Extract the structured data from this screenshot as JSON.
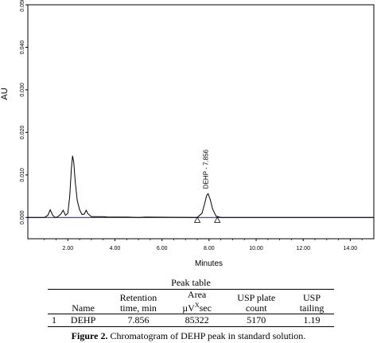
{
  "chart_data": {
    "type": "line",
    "title": "",
    "xlabel": "Minutes",
    "ylabel": "AU",
    "xlim": [
      0.3,
      15.0
    ],
    "ylim": [
      -0.005,
      0.05
    ],
    "x_ticks": [
      "2.00",
      "4.00",
      "6.00",
      "8.00",
      "10.00",
      "12.00",
      "14.00"
    ],
    "x_tick_values": [
      2,
      4,
      6,
      8,
      10,
      12,
      14
    ],
    "y_ticks": [
      "0.000",
      "0.010",
      "0.020",
      "0.030",
      "0.040",
      "0.050"
    ],
    "y_tick_values": [
      0,
      0.01,
      0.02,
      0.03,
      0.04,
      0.05
    ],
    "grid": false,
    "series": [
      {
        "values": [
          [
            0.3,
            0.0
          ],
          [
            1.0,
            0.0
          ],
          [
            1.15,
            0.0005
          ],
          [
            1.25,
            0.0018
          ],
          [
            1.35,
            0.0006
          ],
          [
            1.45,
            0.0
          ],
          [
            1.55,
            0.0001
          ],
          [
            1.7,
            0.0008
          ],
          [
            1.8,
            0.0017
          ],
          [
            1.9,
            0.0005
          ],
          [
            2.0,
            0.001
          ],
          [
            2.08,
            0.005
          ],
          [
            2.15,
            0.0115
          ],
          [
            2.2,
            0.0145
          ],
          [
            2.25,
            0.013
          ],
          [
            2.32,
            0.008
          ],
          [
            2.4,
            0.004
          ],
          [
            2.5,
            0.0018
          ],
          [
            2.6,
            0.0007
          ],
          [
            2.7,
            0.0008
          ],
          [
            2.78,
            0.0017
          ],
          [
            2.85,
            0.0009
          ],
          [
            3.0,
            0.0002
          ],
          [
            3.5,
            0.0002
          ],
          [
            3.7,
            0.0001
          ],
          [
            4.0,
            0.0001
          ],
          [
            4.5,
            0.0001
          ],
          [
            5.0,
            0.0
          ],
          [
            5.3,
            0.0001
          ],
          [
            7.5,
            0.0
          ],
          [
            7.7,
            0.001
          ],
          [
            7.8,
            0.003
          ],
          [
            7.9,
            0.0052
          ],
          [
            7.96,
            0.0056
          ],
          [
            8.05,
            0.0042
          ],
          [
            8.15,
            0.002
          ],
          [
            8.3,
            0.0003
          ],
          [
            8.5,
            0.0
          ],
          [
            15.0,
            0.0
          ]
        ],
        "color": "#000000"
      },
      {
        "values": [
          [
            0.3,
            0.0
          ],
          [
            15.0,
            0.0
          ]
        ],
        "color": "#3333aa"
      }
    ],
    "annotations": [
      {
        "text": "DEHP - 7.856",
        "x": 7.856,
        "y": 0.006
      }
    ],
    "markers": [
      {
        "x": 7.5,
        "y": -0.0006
      },
      {
        "x": 8.35,
        "y": -0.0006
      }
    ]
  },
  "table": {
    "title": "Peak table",
    "headers": [
      {
        "line1": "",
        "line2": ""
      },
      {
        "line1": "",
        "line2": "Name"
      },
      {
        "line1": "Retention",
        "line2": "time, min"
      },
      {
        "line1": "Area",
        "line2": "µV",
        "sup": "X",
        "line2b": "sec"
      },
      {
        "line1": "USP plate",
        "line2": "count"
      },
      {
        "line1": "USP",
        "line2": "tailing"
      }
    ],
    "rows": [
      [
        "1",
        "DEHP",
        "7.856",
        "85322",
        "5170",
        "1.19"
      ]
    ]
  },
  "caption": {
    "label": "Figure 2.",
    "text": " Chromatogram of DEHP peak in standard solution."
  }
}
